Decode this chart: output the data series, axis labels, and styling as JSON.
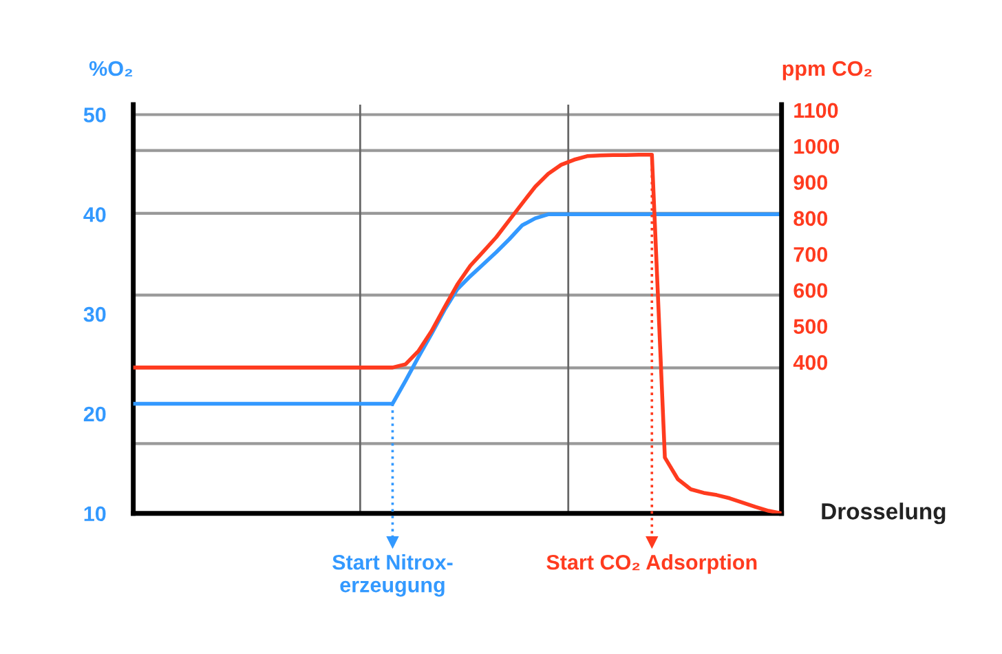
{
  "chart_data": {
    "type": "line",
    "ylabel": "%O₂",
    "y2label": "ppm CO₂",
    "xlabel": "Drosselung",
    "categories": [
      null,
      null,
      null,
      null,
      null,
      null,
      null,
      null,
      null,
      null,
      null,
      null,
      null,
      null,
      null,
      null,
      null,
      null,
      null,
      null,
      null,
      null,
      null,
      null,
      null,
      null,
      null,
      null,
      null,
      null,
      null,
      null,
      null,
      null,
      null,
      null,
      null,
      null,
      null,
      null,
      null,
      null,
      null,
      null,
      null,
      null,
      null,
      null,
      null,
      null,
      null
    ],
    "ylim": [
      10,
      51
    ],
    "yticks": [
      10,
      20,
      30,
      40,
      50
    ],
    "y2lim": [
      -20,
      1115
    ],
    "y2ticks": [
      400,
      500,
      600,
      700,
      800,
      900,
      1000,
      1100
    ],
    "grid": false,
    "marker": "none",
    "line_style": "solid",
    "series": [
      {
        "color": "#3399ff",
        "values": [
          21,
          21,
          21,
          21,
          21,
          21,
          21,
          21,
          21,
          21,
          21,
          21,
          21,
          21,
          21,
          21,
          21,
          21,
          21,
          21,
          21,
          23.3,
          25.7,
          28,
          30.4,
          32.5,
          33.8,
          35,
          36.2,
          37.5,
          38.9,
          39.6,
          40,
          40,
          40,
          40,
          40,
          40,
          40,
          40,
          40,
          40,
          40,
          40,
          40,
          40,
          40,
          40,
          40,
          40,
          40
        ]
      },
      {
        "color": "#ff3b1f",
        "axis": "y2",
        "values": [
          385,
          385,
          385,
          385,
          385,
          385,
          385,
          385,
          385,
          385,
          385,
          385,
          385,
          385,
          385,
          385,
          385,
          385,
          385,
          385,
          385,
          394,
          431,
          486,
          552,
          616,
          668,
          707,
          747,
          794,
          841,
          887,
          923,
          948,
          962,
          972,
          974,
          975,
          975,
          976,
          976,
          135,
          75,
          47,
          37,
          31,
          22,
          10,
          -2,
          -13,
          -20
        ]
      }
    ],
    "ref_lines": [
      {
        "axis": "y",
        "value": 50,
        "color": "#999999"
      },
      {
        "axis": "y",
        "value": 46.4,
        "color": "#999999"
      },
      {
        "axis": "y",
        "value": 40.1,
        "color": "#999999"
      },
      {
        "axis": "y",
        "value": 31.9,
        "color": "#999999"
      },
      {
        "axis": "y",
        "value": 24.6,
        "color": "#999999"
      },
      {
        "axis": "y",
        "value": 17,
        "color": "#999999"
      }
    ],
    "annotations": [
      {
        "text": "Start Nitrox-\nerzeugung",
        "y": 21
      },
      {
        "text": "Start CO₂ Adsorption",
        "y": 45.9
      }
    ]
  }
}
